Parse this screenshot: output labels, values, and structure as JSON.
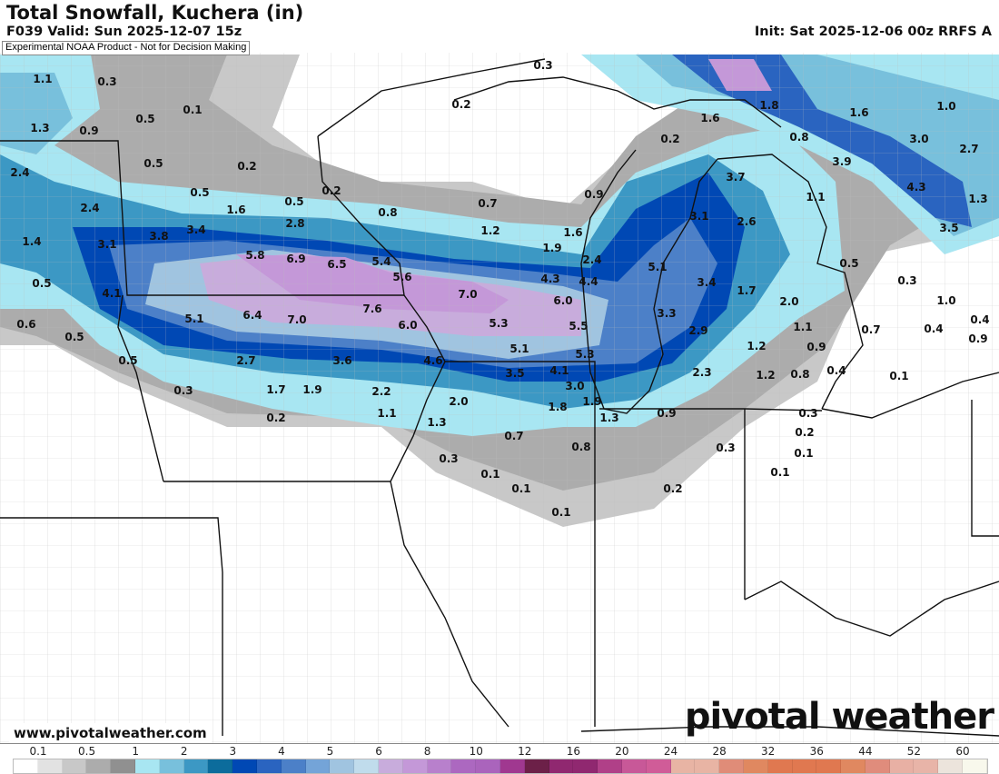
{
  "header": {
    "title": "Total Snowfall, Kuchera (in)",
    "valid": "F039 Valid: Sun 2025-12-07 15z",
    "init": "Init: Sat 2025-12-06 00z RRFS A",
    "disclaimer": "Experimental NOAA Product - Not for Decision Making"
  },
  "footer": {
    "url": "www.pivotalweather.com",
    "logo": "pivotal weather"
  },
  "colorbar": {
    "labels": [
      "0.1",
      "0.5",
      "1",
      "2",
      "3",
      "4",
      "5",
      "6",
      "8",
      "10",
      "12",
      "16",
      "20",
      "24",
      "28",
      "32",
      "36",
      "44",
      "52",
      "60"
    ],
    "colors": [
      "#ffffff",
      "#e2e2e2",
      "#c8c8c8",
      "#acacac",
      "#909090",
      "#a8e6f2",
      "#78c0dc",
      "#3c98c4",
      "#0c6c9c",
      "#0048b4",
      "#2a64c0",
      "#4c80c8",
      "#74a4d8",
      "#a0c4e0",
      "#c0dcec",
      "#c8acdc",
      "#c498d8",
      "#b880cc",
      "#ac68c0",
      "#aa64bc",
      "#a03890",
      "#6c2048",
      "#902870",
      "#902870",
      "#b04088",
      "#c85898",
      "#d05c98",
      "#e8b4a4",
      "#e8b4a4",
      "#e08c78",
      "#e08860",
      "#e07850",
      "#e07850",
      "#e07850",
      "#e08860",
      "#e08c7c",
      "#e8b0a4",
      "#e8b4a8",
      "#ece4dc",
      "#f8f8ec"
    ]
  },
  "snowfall_labels": [
    "1.1",
    "0.3",
    "0.3",
    "0.2",
    "1.6",
    "1.8",
    "1.6",
    "1.0",
    "1.3",
    "0.9",
    "0.5",
    "0.1",
    "0.2",
    "0.8",
    "3.0",
    "2.7",
    "0.5",
    "0.2",
    "3.9",
    "2.4",
    "0.5",
    "0.5",
    "0.2",
    "0.7",
    "0.9",
    "3.7",
    "1.1",
    "4.3",
    "1.3",
    "2.4",
    "1.6",
    "2.8",
    "0.8",
    "1.2",
    "3.1",
    "2.6",
    "3.5",
    "1.4",
    "3.1",
    "3.8",
    "3.4",
    "1.9",
    "1.6",
    "5.8",
    "6.9",
    "6.5",
    "5.4",
    "2.4",
    "0.5",
    "0.5",
    "5.6",
    "4.3",
    "4.4",
    "5.1",
    "3.4",
    "1.7",
    "0.3",
    "4.1",
    "7.0",
    "6.0",
    "2.0",
    "1.0",
    "0.6",
    "5.1",
    "6.4",
    "7.0",
    "7.6",
    "6.0",
    "5.3",
    "5.5",
    "3.3",
    "1.1",
    "0.7",
    "0.4",
    "0.4",
    "0.5",
    "2.9",
    "1.2",
    "0.9",
    "0.9",
    "5.1",
    "5.3",
    "0.5",
    "2.7",
    "3.6",
    "4.6",
    "0.4",
    "0.1",
    "3.5",
    "4.1",
    "2.3",
    "1.2",
    "0.8",
    "0.3",
    "1.7",
    "1.9",
    "2.2",
    "3.0",
    "2.0",
    "1.9",
    "1.8",
    "0.2",
    "1.1",
    "1.3",
    "1.3",
    "0.9",
    "0.3",
    "0.2",
    "0.7",
    "0.8",
    "0.3",
    "0.3",
    "0.1",
    "0.1",
    "0.1",
    "0.1",
    "0.2",
    "0.1"
  ]
}
